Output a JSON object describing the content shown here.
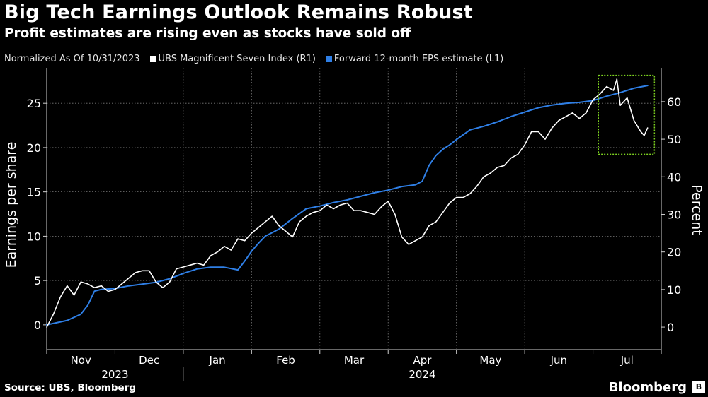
{
  "header": {
    "title": "Big Tech Earnings Outlook Remains Robust",
    "subtitle": "Profit estimates are rising even as stocks have sold off"
  },
  "legend": {
    "note": "Normalized As Of 10/31/2023",
    "items": [
      {
        "label": "UBS Magnificent Seven Index (R1)",
        "color": "#ffffff"
      },
      {
        "label": "Forward 12-month EPS estimate (L1)",
        "color": "#2f7fe6"
      }
    ]
  },
  "footer": {
    "source": "Source: UBS, Bloomberg",
    "brand": "Bloomberg",
    "brand_mark": "B"
  },
  "chart_data": {
    "type": "line",
    "title": "Big Tech Earnings Outlook Remains Robust",
    "subtitle": "Profit estimates are rising even as stocks have sold off",
    "xlabel": "",
    "ylabel_left": "Earnings per share",
    "ylabel_right": "Percent",
    "x_domain_months": [
      0,
      9.0
    ],
    "ylim_left": [
      -2.8,
      29
    ],
    "ylim_right": [
      -6,
      69
    ],
    "yticks_left": [
      0,
      5,
      10,
      15,
      20,
      25
    ],
    "yticks_right": [
      0,
      10,
      20,
      30,
      40,
      50,
      60
    ],
    "month_labels": [
      {
        "label": "Nov",
        "x": 0.5
      },
      {
        "label": "Dec",
        "x": 1.5
      },
      {
        "label": "Jan",
        "x": 2.5
      },
      {
        "label": "Feb",
        "x": 3.5
      },
      {
        "label": "Mar",
        "x": 4.5
      },
      {
        "label": "Apr",
        "x": 5.5
      },
      {
        "label": "May",
        "x": 6.5
      },
      {
        "label": "Jun",
        "x": 7.5
      },
      {
        "label": "Jul",
        "x": 8.5
      }
    ],
    "month_boundaries": [
      1,
      2,
      3,
      4,
      5,
      6,
      7,
      8
    ],
    "year_labels": [
      {
        "label": "2023",
        "x": 1.0
      },
      {
        "label": "2024",
        "x": 5.5
      }
    ],
    "year_divider_x": 2.0,
    "grid": true,
    "highlight_box": {
      "x_range": [
        8.08,
        8.9
      ],
      "y_right_range": [
        46,
        67
      ],
      "color": "#7ed321"
    },
    "series": [
      {
        "name": "Forward 12-month EPS estimate (L1)",
        "axis": "left",
        "color": "#2f7fe6",
        "x": [
          0,
          0.3,
          0.5,
          0.6,
          0.7,
          0.8,
          1.0,
          1.2,
          1.4,
          1.6,
          1.8,
          2.0,
          2.2,
          2.4,
          2.6,
          2.8,
          2.9,
          3.0,
          3.1,
          3.2,
          3.4,
          3.6,
          3.8,
          4.0,
          4.2,
          4.4,
          4.6,
          4.8,
          5.0,
          5.2,
          5.4,
          5.5,
          5.6,
          5.7,
          5.8,
          5.9,
          6.0,
          6.2,
          6.4,
          6.6,
          6.8,
          7.0,
          7.2,
          7.4,
          7.6,
          7.8,
          8.0,
          8.2,
          8.4,
          8.6,
          8.8
        ],
        "values": [
          0,
          0.5,
          1.2,
          2.2,
          3.8,
          4.0,
          4.1,
          4.4,
          4.6,
          4.8,
          5.2,
          5.8,
          6.3,
          6.5,
          6.5,
          6.2,
          7.2,
          8.3,
          9.2,
          10.0,
          10.8,
          12.0,
          13.1,
          13.4,
          13.8,
          14.1,
          14.5,
          14.9,
          15.2,
          15.6,
          15.8,
          16.2,
          18.0,
          19.1,
          19.8,
          20.3,
          20.9,
          22.0,
          22.4,
          22.9,
          23.5,
          24.0,
          24.5,
          24.8,
          25.0,
          25.1,
          25.3,
          25.8,
          26.2,
          26.7,
          27.0
        ]
      },
      {
        "name": "UBS Magnificent Seven Index (R1)",
        "axis": "right",
        "color": "#ffffff",
        "x": [
          0,
          0.1,
          0.2,
          0.3,
          0.4,
          0.5,
          0.6,
          0.7,
          0.8,
          0.9,
          1.0,
          1.1,
          1.2,
          1.3,
          1.4,
          1.5,
          1.6,
          1.7,
          1.8,
          1.9,
          2.0,
          2.1,
          2.2,
          2.3,
          2.4,
          2.5,
          2.6,
          2.7,
          2.8,
          2.9,
          3.0,
          3.1,
          3.2,
          3.3,
          3.4,
          3.5,
          3.6,
          3.7,
          3.8,
          3.9,
          4.0,
          4.1,
          4.2,
          4.3,
          4.4,
          4.5,
          4.6,
          4.7,
          4.8,
          4.9,
          5.0,
          5.1,
          5.2,
          5.3,
          5.4,
          5.5,
          5.6,
          5.7,
          5.8,
          5.9,
          6.0,
          6.1,
          6.2,
          6.3,
          6.4,
          6.5,
          6.6,
          6.7,
          6.8,
          6.9,
          7.0,
          7.1,
          7.2,
          7.3,
          7.4,
          7.5,
          7.6,
          7.7,
          7.8,
          7.9,
          8.0,
          8.1,
          8.2,
          8.3,
          8.35,
          8.4,
          8.5,
          8.55,
          8.6,
          8.7,
          8.75,
          8.8
        ],
        "values": [
          0,
          3.5,
          8.0,
          11.0,
          8.5,
          12.0,
          11.5,
          10.5,
          11.0,
          9.5,
          10.0,
          11.5,
          13.0,
          14.5,
          15.0,
          15.0,
          12.0,
          10.5,
          12.0,
          15.5,
          16.0,
          16.5,
          17.0,
          16.5,
          19.0,
          20.0,
          21.5,
          20.5,
          23.5,
          23.0,
          25.0,
          26.5,
          28.0,
          29.5,
          27.0,
          25.5,
          24.0,
          28.0,
          29.5,
          30.5,
          31.0,
          32.5,
          31.5,
          32.5,
          33.0,
          31.0,
          31.0,
          30.5,
          30.0,
          32.0,
          33.5,
          30.0,
          24.0,
          22.0,
          23.0,
          24.0,
          27.0,
          28.0,
          30.5,
          33.0,
          34.5,
          34.5,
          35.5,
          37.5,
          40.0,
          41.0,
          42.5,
          43.0,
          45.0,
          46.0,
          48.5,
          52.0,
          52.0,
          50.0,
          53.0,
          55.0,
          56.0,
          57.0,
          55.5,
          57.0,
          60.5,
          62.0,
          64.0,
          63.0,
          66.0,
          59.0,
          61.0,
          58.0,
          55.0,
          52.0,
          51.0,
          53.0
        ]
      }
    ]
  }
}
